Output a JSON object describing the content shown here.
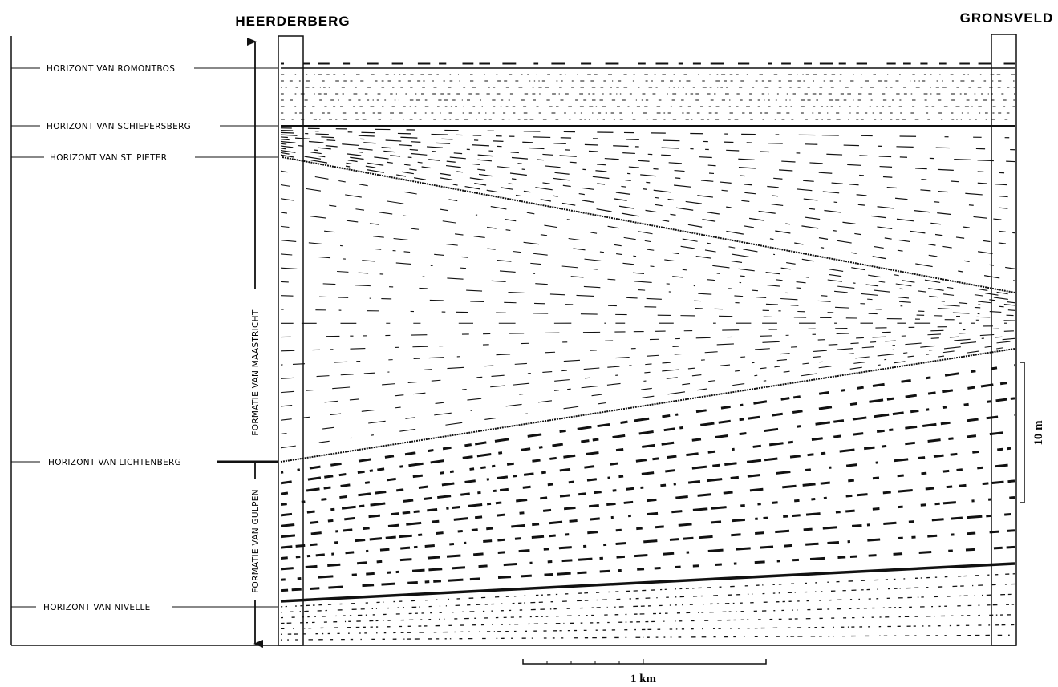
{
  "header": {
    "left_section": "HEERDERBERG",
    "right_section": "GRONSVELD"
  },
  "horizons": [
    "HORIZONT VAN ROMONTBOS",
    "HORIZONT VAN SCHIEPERSBERG",
    "HORIZONT VAN ST. PIETER",
    "HORIZONT VAN LICHTENBERG",
    "HORIZONT VAN NIVELLE"
  ],
  "formations": [
    "FORMATIE VAN MAASTRICHT",
    "FORMATIE VAN GULPEN"
  ],
  "scale": {
    "vertical": "10 m",
    "horizontal": "1 km"
  }
}
